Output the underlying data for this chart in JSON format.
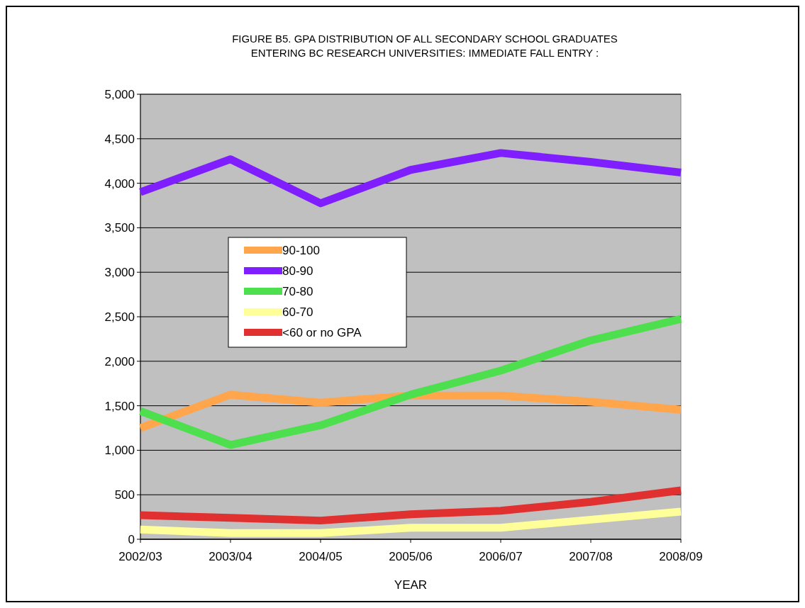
{
  "chart_data": {
    "type": "line",
    "title": "FIGURE B5.   GPA DISTRIBUTION OF ALL SECONDARY SCHOOL GRADUATES",
    "subtitle": "ENTERING BC RESEARCH UNIVERSITIES: IMMEDIATE FALL ENTRY :",
    "xlabel": "YEAR",
    "categories": [
      "2002/03",
      "2003/04",
      "2004/05",
      "2005/06",
      "2006/07",
      "2007/08",
      "2008/09"
    ],
    "series": [
      {
        "name": "90-100",
        "color": "#ffa64d",
        "values": [
          1250,
          1625,
          1535,
          1615,
          1615,
          1545,
          1455
        ]
      },
      {
        "name": "80-90",
        "color": "#7f1fff",
        "values": [
          3900,
          4270,
          3775,
          4150,
          4340,
          4240,
          4120
        ]
      },
      {
        "name": "70-80",
        "color": "#4ddf4d",
        "values": [
          1440,
          1060,
          1280,
          1625,
          1895,
          2235,
          2475
        ]
      },
      {
        "name": "60-70",
        "color": "#ffff99",
        "values": [
          110,
          70,
          70,
          130,
          130,
          220,
          310
        ]
      },
      {
        "name": "<60 or no GPA",
        "color": "#e03030",
        "values": [
          270,
          240,
          210,
          280,
          320,
          420,
          550
        ]
      }
    ],
    "ylim": [
      0,
      5000
    ],
    "yticks": [
      {
        "value": 0,
        "label": "0"
      },
      {
        "value": 500,
        "label": "500"
      },
      {
        "value": 1000,
        "label": "1,000"
      },
      {
        "value": 1500,
        "label": "1,500"
      },
      {
        "value": 2000,
        "label": "2,000"
      },
      {
        "value": 2500,
        "label": "2,500"
      },
      {
        "value": 3000,
        "label": "3,000"
      },
      {
        "value": 3500,
        "label": "3,500"
      },
      {
        "value": 4000,
        "label": "4,000"
      },
      {
        "value": 4500,
        "label": "4,500"
      },
      {
        "value": 5000,
        "label": "5,000"
      }
    ],
    "grid": "y",
    "legend": "center",
    "line_style": "solid"
  }
}
